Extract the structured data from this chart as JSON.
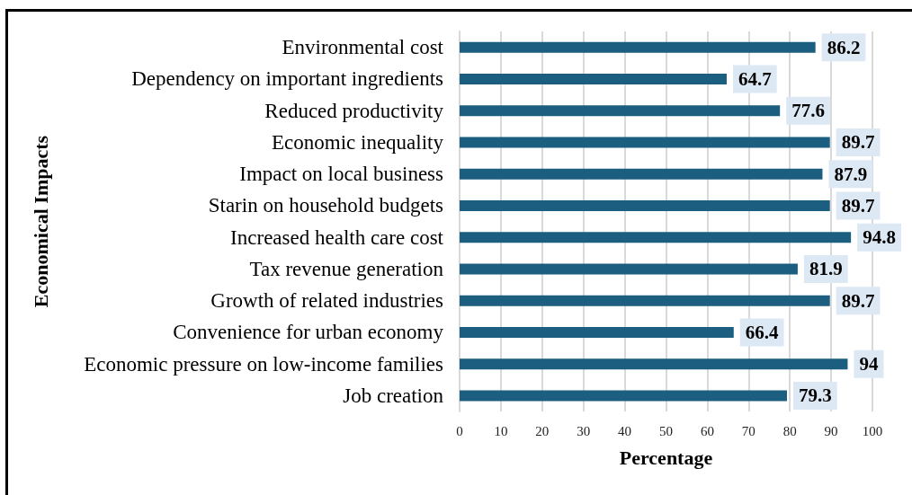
{
  "chart_data": {
    "type": "bar",
    "orientation": "horizontal",
    "xlabel": "Percentage",
    "ylabel": "Economical Impacts",
    "categories": [
      "Environmental cost",
      "Dependency on important ingredients",
      "Reduced productivity",
      "Economic inequality",
      "Impact on local business",
      "Starin on household budgets",
      "Increased health care cost",
      "Tax revenue generation",
      "Growth of related industries",
      "Convenience for urban economy",
      "Economic pressure on low-income families",
      "Job creation"
    ],
    "values": [
      86.2,
      64.7,
      77.6,
      89.7,
      87.9,
      89.7,
      94.8,
      81.9,
      89.7,
      66.4,
      94,
      79.3
    ],
    "color": "#1b5e80",
    "xlim": [
      0,
      100
    ],
    "xticks": [
      0,
      10,
      20,
      30,
      40,
      50,
      60,
      70,
      80,
      90,
      100
    ],
    "grid": "x",
    "data_labels": true
  }
}
